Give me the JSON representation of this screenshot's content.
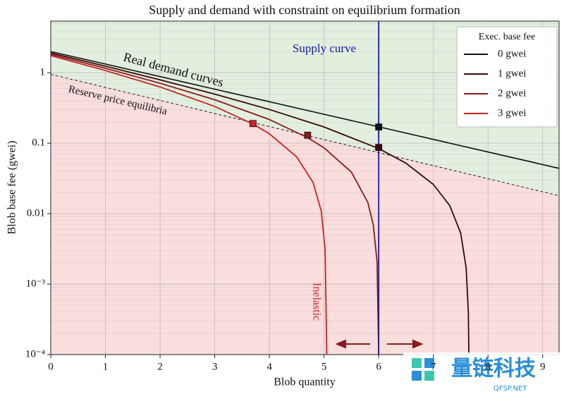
{
  "chart_data": {
    "type": "line",
    "title": "Supply and demand with constraint on equilibrium formation",
    "x_label": "Blob quantity",
    "y_label": "Blob base fee (gwei)",
    "xlim": [
      0,
      9.3
    ],
    "ylim": [
      0.0001,
      5.4
    ],
    "y_scale": "log",
    "xticks": [
      0,
      1,
      2,
      3,
      4,
      5,
      6,
      7,
      8,
      9
    ],
    "yticks": [
      {
        "value": 0.0001,
        "label": "10⁻⁴"
      },
      {
        "value": 0.001,
        "label": "10⁻³"
      },
      0.01,
      0.1,
      1
    ],
    "grid": true,
    "minor_grid": true,
    "legend_title": "Exec. base fee",
    "legend_position": "upper right",
    "series": [
      {
        "name": "0 gwei",
        "color": "#111111",
        "x": [
          0,
          3,
          6,
          9.3
        ],
        "values": [
          2,
          0.585,
          0.171,
          0.044
        ]
      },
      {
        "name": "1 gwei",
        "color": "#3a0808",
        "x": [
          0,
          1,
          2,
          3,
          4,
          5,
          6,
          6.5,
          7,
          7.3,
          7.5,
          7.6,
          7.64,
          7.65
        ],
        "values": [
          1.91,
          1.24,
          0.794,
          0.498,
          0.301,
          0.17,
          0.084,
          0.052,
          0.026,
          0.013,
          0.0053,
          0.0017,
          0.0004,
          0.0001
        ]
      },
      {
        "name": "2 gwei",
        "color": "#8b1a1a",
        "x": [
          0,
          1,
          2,
          3,
          4,
          4.7,
          5,
          5.5,
          5.8,
          5.9,
          5.97,
          6
        ],
        "values": [
          1.83,
          1.156,
          0.71,
          0.414,
          0.217,
          0.12,
          0.086,
          0.039,
          0.0145,
          0.007,
          0.0021,
          0.0001
        ]
      },
      {
        "name": "3 gwei",
        "color": "#cc2222",
        "x": [
          0,
          1,
          2,
          3,
          3.7,
          4,
          4.5,
          4.8,
          4.95,
          5.02,
          5.05
        ],
        "values": [
          1.75,
          1.075,
          0.629,
          0.333,
          0.187,
          0.136,
          0.064,
          0.0276,
          0.0108,
          0.0031,
          0.0001
        ]
      }
    ],
    "reserve_line": {
      "color": "#222222",
      "x": [
        0,
        9.3
      ],
      "values": [
        0.95,
        0.018
      ]
    },
    "supply_line": {
      "color": "#1a1aa6",
      "x": 6
    },
    "equilibria": [
      {
        "x": 3.7,
        "value": 0.19,
        "color": "#cc2222"
      },
      {
        "x": 4.7,
        "value": 0.13,
        "color": "#8b1a1a"
      },
      {
        "x": 6,
        "value": 0.087,
        "color": "#3a0808"
      },
      {
        "x": 6,
        "value": 0.17,
        "color": "#111111"
      }
    ],
    "above_color": "#e2efdf",
    "below_color": "#fadddd",
    "annotations": {
      "demand": "Real demand curves",
      "reserve": "Reserve price equilibria",
      "supply": "Supply curve",
      "inelastic": "Inelastic"
    },
    "watermark": {
      "name": "量链科技",
      "site": "QFSP.NET"
    }
  }
}
